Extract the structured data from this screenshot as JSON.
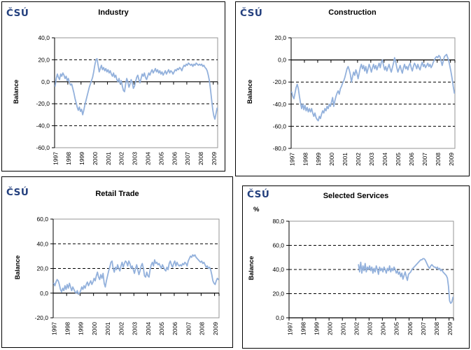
{
  "logo_text": "ČSÚ",
  "colors": {
    "line": "#93B1DC",
    "logo_navy": "#24407E",
    "plot_border_gray": "#969696",
    "axis_black": "#000000"
  },
  "chart_data": [
    {
      "type": "line",
      "title": "Industry",
      "ylabel": "Balance",
      "unit_label": "",
      "ylim": [
        -60,
        40
      ],
      "yticks": [
        40,
        20,
        0,
        -20,
        -40,
        -60
      ],
      "ytick_labels": [
        "40,0",
        "20,0",
        "0,0",
        "-20,0",
        "-40,0",
        "-60,0"
      ],
      "grid": "dashed horizontal, solid axis at 0",
      "legend": "none",
      "x_start": "1997-01",
      "x_end": "2009-04",
      "n_months": 148,
      "xtick_labels": [
        "1997",
        "1998",
        "1999",
        "2000",
        "2001",
        "2002",
        "2003",
        "2004",
        "2005",
        "2006",
        "2007",
        "2008",
        "2009"
      ],
      "series": [
        {
          "name": "Balance",
          "start_index": 0,
          "values": [
            -4,
            3,
            7,
            4,
            2,
            7,
            5,
            8,
            6,
            3,
            5,
            1,
            3,
            -1,
            -3,
            -2,
            -6,
            -10,
            -15,
            -19,
            -23,
            -26,
            -23,
            -27,
            -25,
            -30,
            -26,
            -21,
            -17,
            -13,
            -9,
            -5,
            -2,
            1,
            4,
            9,
            15,
            20,
            21,
            15,
            9,
            12,
            15,
            11,
            13,
            10,
            12,
            9,
            11,
            8,
            10,
            7,
            5,
            8,
            4,
            6,
            2,
            0,
            3,
            -2,
            1,
            -4,
            -8,
            -9,
            -2,
            3,
            0,
            -5,
            -2,
            2,
            -1,
            -6,
            -4,
            0,
            4,
            6,
            2,
            -1,
            3,
            7,
            5,
            8,
            4,
            2,
            5,
            8,
            6,
            9,
            11,
            8,
            10,
            12,
            9,
            11,
            8,
            10,
            7,
            9,
            6,
            8,
            10,
            7,
            9,
            11,
            8,
            10,
            9,
            7,
            9,
            11,
            10,
            12,
            11,
            13,
            12,
            10,
            13,
            15,
            14,
            16,
            15,
            17,
            16,
            15,
            16,
            14,
            16,
            15,
            17,
            16,
            15,
            16,
            15,
            16,
            14,
            15,
            13,
            12,
            10,
            6,
            1,
            -7,
            -16,
            -25,
            -31,
            -34,
            -29,
            -24
          ]
        }
      ]
    },
    {
      "type": "line",
      "title": "Construction",
      "ylabel": "Balance",
      "unit_label": "",
      "ylim": [
        -80,
        20
      ],
      "yticks": [
        20,
        0,
        -20,
        -40,
        -60,
        -80
      ],
      "ytick_labels": [
        "20,0",
        "0,0",
        "-20,0",
        "-40,0",
        "-60,0",
        "-80,0"
      ],
      "grid": "dashed horizontal, solid axis at 0",
      "legend": "none",
      "x_start": "1997-01",
      "x_end": "2009-04",
      "n_months": 148,
      "xtick_labels": [
        "1997",
        "1998",
        "1999",
        "2000",
        "2001",
        "2002",
        "2003",
        "2004",
        "2005",
        "2006",
        "2007",
        "2008",
        "2009"
      ],
      "series": [
        {
          "name": "Balance",
          "start_index": 0,
          "values": [
            -29,
            -33,
            -35,
            -30,
            -25,
            -22,
            -26,
            -33,
            -39,
            -44,
            -40,
            -45,
            -41,
            -46,
            -43,
            -47,
            -44,
            -47,
            -44,
            -48,
            -51,
            -48,
            -52,
            -54,
            -55,
            -51,
            -53,
            -49,
            -46,
            -48,
            -44,
            -46,
            -42,
            -44,
            -40,
            -42,
            -38,
            -34,
            -42,
            -37,
            -33,
            -30,
            -28,
            -31,
            -26,
            -24,
            -21,
            -19,
            -16,
            -12,
            -8,
            -6,
            -9,
            -13,
            -20,
            -15,
            -11,
            -14,
            -9,
            -12,
            -17,
            -12,
            -7,
            -4,
            -8,
            -5,
            -10,
            -6,
            -12,
            -8,
            -4,
            -7,
            -11,
            -7,
            -4,
            -8,
            -5,
            -9,
            -6,
            -3,
            -7,
            -2,
            0,
            -5,
            -9,
            -6,
            -10,
            -7,
            -4,
            -8,
            -11,
            -7,
            -3,
            2,
            -2,
            -7,
            -11,
            -8,
            -5,
            -9,
            -12,
            -7,
            -4,
            -8,
            -6,
            -9,
            -5,
            -3,
            -7,
            -10,
            -6,
            -3,
            -5,
            -8,
            -4,
            -7,
            -9,
            -5,
            -2,
            -6,
            -4,
            -7,
            -5,
            -3,
            -6,
            -4,
            -7,
            -5,
            -2,
            0,
            2,
            3,
            2,
            4,
            3,
            -1,
            -5,
            -1,
            3,
            4,
            5,
            2,
            -1,
            -6,
            -11,
            -17,
            -24,
            -30
          ]
        }
      ]
    },
    {
      "type": "line",
      "title": "Retail Trade",
      "ylabel": "Balance",
      "unit_label": "",
      "ylim": [
        -20,
        60
      ],
      "yticks": [
        60,
        40,
        20,
        0,
        -20
      ],
      "ytick_labels": [
        "60,0",
        "40,0",
        "20,0",
        "0,0",
        "-20,0"
      ],
      "grid": "dashed horizontal, solid axis at 0",
      "legend": "none",
      "x_start": "1997-01",
      "x_end": "2009-04",
      "n_months": 148,
      "xtick_labels": [
        "1997",
        "1998",
        "1999",
        "2000",
        "2001",
        "2002",
        "2003",
        "2004",
        "2005",
        "2006",
        "2007",
        "2008",
        "2009"
      ],
      "series": [
        {
          "name": "Balance",
          "start_index": 0,
          "values": [
            8,
            6,
            9,
            11,
            10,
            7,
            3,
            1,
            4,
            2,
            6,
            3,
            7,
            4,
            8,
            5,
            2,
            5,
            3,
            1,
            0,
            2,
            -1,
            0,
            2,
            5,
            3,
            6,
            4,
            7,
            9,
            6,
            8,
            10,
            7,
            9,
            12,
            10,
            14,
            17,
            13,
            11,
            15,
            12,
            16,
            8,
            5,
            10,
            14,
            18,
            21,
            25,
            26,
            20,
            17,
            21,
            19,
            23,
            20,
            18,
            22,
            25,
            21,
            24,
            26,
            25,
            22,
            26,
            24,
            20,
            22,
            19,
            16,
            20,
            23,
            19,
            15,
            18,
            22,
            24,
            20,
            14,
            13,
            17,
            14,
            13,
            19,
            23,
            25,
            22,
            27,
            24,
            25,
            23,
            24,
            22,
            20,
            23,
            21,
            19,
            18,
            21,
            19,
            24,
            26,
            23,
            21,
            24,
            26,
            22,
            25,
            23,
            22,
            23,
            22,
            24,
            23,
            25,
            24,
            22,
            26,
            28,
            30,
            29,
            31,
            30,
            31,
            29,
            28,
            27,
            26,
            25,
            26,
            24,
            25,
            23,
            21,
            22,
            20,
            21,
            19,
            15,
            10,
            8,
            7,
            10,
            12,
            11
          ]
        }
      ]
    },
    {
      "type": "line",
      "title": "Selected Services",
      "ylabel": "Balance",
      "unit_label": "%",
      "ylim": [
        0,
        80
      ],
      "yticks": [
        80,
        60,
        40,
        20,
        0
      ],
      "ytick_labels": [
        "80,0",
        "60,0",
        "40,0",
        "20,0",
        "0,0"
      ],
      "grid": "dashed horizontal, solid axis at 0 (bottom)",
      "legend": "none",
      "x_start": "1997-01",
      "x_end": "2009-04",
      "n_months": 148,
      "xtick_labels": [
        "1997",
        "1998",
        "1999",
        "2000",
        "2001",
        "2002",
        "2003",
        "2004",
        "2005",
        "2006",
        "2007",
        "2008",
        "2009"
      ],
      "series": [
        {
          "name": "Balance",
          "start_index": 62,
          "values": [
            44,
            38,
            46,
            37,
            43,
            39,
            45,
            38,
            42,
            40,
            43,
            39,
            42,
            37,
            41,
            38,
            43,
            40,
            36,
            42,
            39,
            41,
            38,
            42,
            40,
            37,
            41,
            39,
            43,
            38,
            41,
            39,
            42,
            40,
            37,
            39,
            36,
            38,
            34,
            37,
            32,
            35,
            38,
            34,
            31,
            36,
            37,
            38,
            40,
            41,
            42,
            43,
            44,
            45,
            46,
            47,
            48,
            48,
            49,
            49,
            48,
            46,
            44,
            42,
            41,
            43,
            44,
            43,
            42,
            42,
            41,
            42,
            40,
            41,
            39,
            40,
            38,
            37,
            36,
            35,
            33,
            26,
            14,
            12,
            13,
            17
          ]
        }
      ]
    }
  ]
}
